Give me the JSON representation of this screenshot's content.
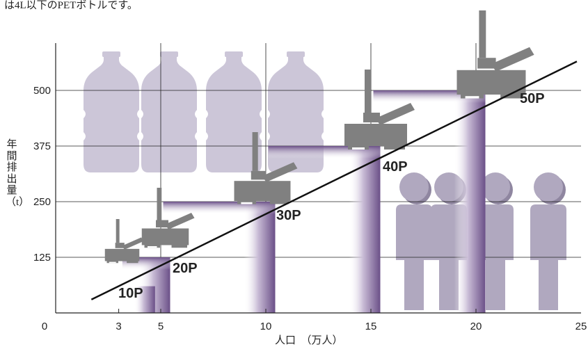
{
  "note": "は4L以下のPETボトルです。",
  "chart_data": {
    "type": "line",
    "xlabel": "人口　（万人）",
    "ylabel": "年間排出量（t）",
    "xlim": [
      0,
      25
    ],
    "ylim": [
      0,
      600
    ],
    "xticks": [
      0,
      3,
      5,
      10,
      15,
      20,
      25
    ],
    "yticks": [
      125,
      250,
      375,
      500
    ],
    "grid": true,
    "series": [
      {
        "name": "",
        "x": [
          1.7,
          24.8
        ],
        "y": [
          30,
          565
        ]
      }
    ],
    "plants": [
      {
        "label": "10P",
        "population": 4.0,
        "capacity": 125
      },
      {
        "label": "20P",
        "population": 5.0,
        "capacity": 125
      },
      {
        "label": "30P",
        "population": 10.0,
        "capacity": 250
      },
      {
        "label": "40P",
        "population": 15.0,
        "capacity": 375
      },
      {
        "label": "50P",
        "population": 20.0,
        "capacity": 500
      }
    ],
    "colors": {
      "band": "#6b5088",
      "bottle": "#ccc6d8",
      "person": "#b0a8bf",
      "machine": "#808080"
    }
  }
}
